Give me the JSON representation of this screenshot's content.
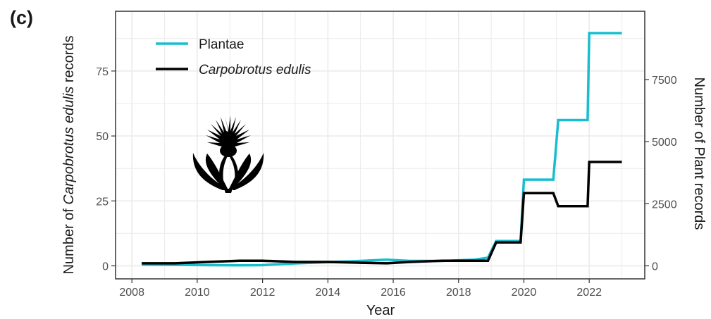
{
  "panel_label": "(c)",
  "colors": {
    "plantae": "#17becf",
    "carpobrotus": "#000000",
    "grid": "#ebebeb",
    "axis": "#333333"
  },
  "icon": "carpobrotus-flower-silhouette",
  "chart_data": {
    "type": "line",
    "xlabel": "Year",
    "ylabel_left": {
      "prefix": "Number of ",
      "italic": "Carpobrotus edulis",
      "suffix": " records"
    },
    "ylabel_right": "Number of Plant records",
    "xlim": [
      2007.5,
      2023.7
    ],
    "ylim_left": [
      -5,
      98
    ],
    "ylim_right": [
      -523,
      10248
    ],
    "x_ticks": [
      "2008",
      "2010",
      "2012",
      "2014",
      "2016",
      "2018",
      "2020",
      "2022"
    ],
    "y_ticks_left": [
      "0",
      "25",
      "50",
      "75"
    ],
    "y_ticks_right": [
      "0",
      "2500",
      "5000",
      "7500"
    ],
    "grid": true,
    "legend": {
      "position": "top-left",
      "entries": [
        {
          "label": "Plantae",
          "italic": false,
          "series": "plantae"
        },
        {
          "label": "Carpobrotus edulis",
          "italic": true,
          "series": "carpobrotus"
        }
      ]
    },
    "series": [
      {
        "name": "Plantae",
        "axis": "right",
        "x": [
          2008.3,
          2009.3,
          2010.3,
          2011.3,
          2012.0,
          2013.0,
          2014.0,
          2015.0,
          2015.8,
          2016.5,
          2017.5,
          2018.5,
          2018.9,
          2019.15,
          2019.9,
          2020.0,
          2020.9,
          2021.05,
          2021.95,
          2022.0,
          2023.0
        ],
        "y": [
          50,
          40,
          30,
          25,
          30,
          100,
          150,
          200,
          250,
          200,
          200,
          250,
          330,
          1000,
          1000,
          3470,
          3470,
          5870,
          5870,
          9370,
          9370
        ]
      },
      {
        "name": "Carpobrotus edulis",
        "axis": "left",
        "x": [
          2008.3,
          2009.3,
          2010.3,
          2011.3,
          2012.0,
          2013.0,
          2014.0,
          2015.0,
          2015.8,
          2016.5,
          2017.5,
          2018.5,
          2018.9,
          2019.15,
          2019.9,
          2020.0,
          2020.9,
          2021.05,
          2021.95,
          2022.0,
          2023.0
        ],
        "y": [
          1,
          1,
          1.5,
          2,
          2,
          1.5,
          1.5,
          1.2,
          1,
          1.5,
          2,
          2,
          2,
          9,
          9,
          28,
          28,
          23,
          23,
          40,
          40
        ]
      }
    ]
  }
}
